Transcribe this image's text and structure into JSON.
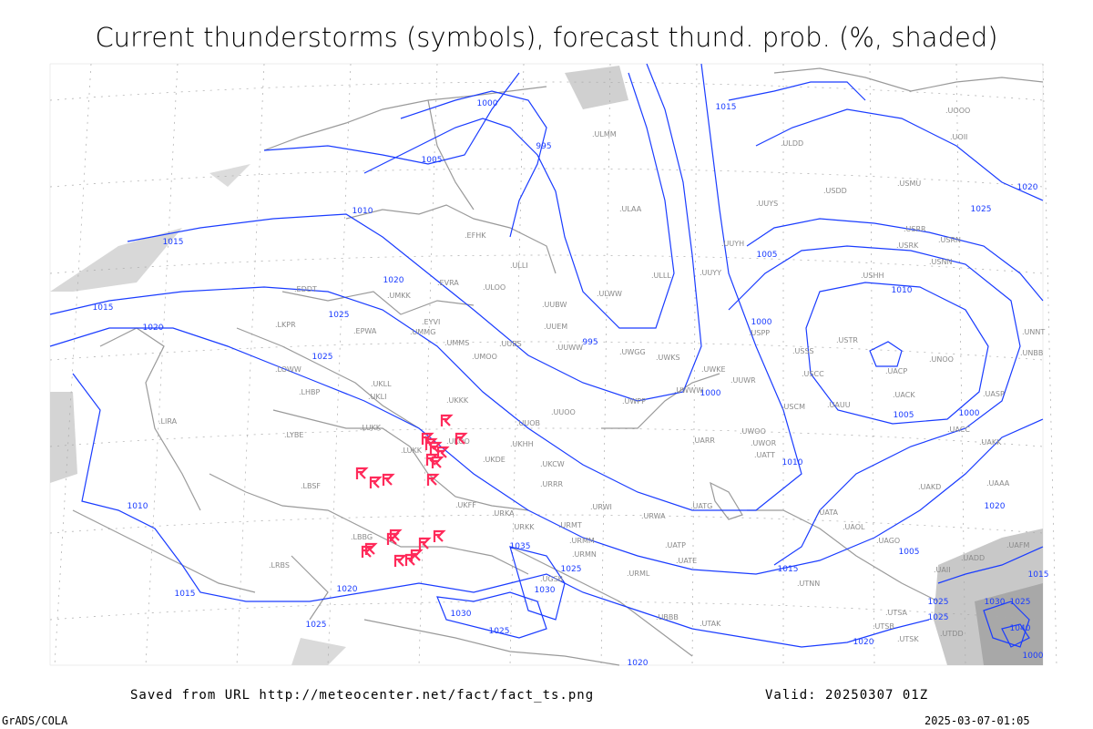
{
  "title": "Current thunderstorms (symbols), forecast thund. prob. (%, shaded)",
  "footer": {
    "saved_from": "Saved from URL http://meteocenter.net/fact/fact_ts.png",
    "valid": "Valid: 20250307 01Z",
    "software": "GrADS/COLA",
    "timestamp": "2025-03-07-01:05"
  },
  "colors": {
    "isobar": "#1a3cff",
    "thunderstorm_symbol": "#ff2a5a",
    "borders": "#9a9a9a",
    "shading": "#d0d0d0"
  },
  "isobar_labels": [
    "1000",
    "995",
    "1005",
    "1010",
    "1015",
    "1020",
    "1025",
    "1015",
    "1020",
    "1025",
    "1020",
    "1025",
    "1015",
    "1005",
    "1000",
    "1010",
    "995",
    "1000",
    "1005",
    "1000",
    "1010",
    "1015",
    "1005",
    "1010",
    "1015",
    "1020",
    "1025",
    "1030",
    "1035",
    "1025",
    "1030",
    "1025",
    "1020",
    "1025",
    "1030",
    "1025",
    "1040",
    "1020",
    "1015",
    "1025",
    "1020",
    "1000"
  ],
  "station_labels": [
    "ULMM",
    "ULAA",
    "EFHK",
    "ULLI",
    "ULOO",
    "EVRA",
    "UMKK",
    "EYVI",
    "UMMG",
    "UMMS",
    "UMOO",
    "UUBS",
    "ULWW",
    "UUEM",
    "UUWW",
    "UWGG",
    "UWKS",
    "UWKE",
    "UWWW",
    "UWPP",
    "UUOB",
    "UUOO",
    "UKKK",
    "UKHH",
    "UKOO",
    "UKDE",
    "LUKK",
    "UKCW",
    "URRR",
    "UKFF",
    "URKA",
    "URKK",
    "URMT",
    "URMM",
    "URMN",
    "URML",
    "URWI",
    "URWA",
    "UATG",
    "UGSB",
    "UBBB",
    "UTAK",
    "UATE",
    "UATP",
    "UARR",
    "UWOO",
    "UWOR",
    "UATT",
    "UAOL",
    "UACC",
    "UAKK",
    "UAAA",
    "UAUU",
    "USCM",
    "USCC",
    "USSS",
    "USTR",
    "UNOO",
    "USPP",
    "UUYY",
    "UUYH",
    "UUYS",
    "ULLL",
    "USDD",
    "USMU",
    "USRR",
    "USRK",
    "USRN",
    "USNN",
    "USHH",
    "UNBB",
    "UNNT",
    "UACP",
    "UACK",
    "UASP",
    "UAKD",
    "UATA",
    "UAGO",
    "UTNN",
    "UTSA",
    "UTSB",
    "UTSK",
    "UTDD",
    "UAFM",
    "UAII",
    "UADD",
    "LBBG",
    "LBSF",
    "LRBS",
    "LUKK",
    "LYBE",
    "LHBP",
    "LKPR",
    "EPWA",
    "LOWW",
    "LIRA",
    "EDDT",
    "UKLL",
    "UKLI",
    "UUWR",
    "UOOO",
    "UOII",
    "ULDD",
    "UUBW"
  ]
}
